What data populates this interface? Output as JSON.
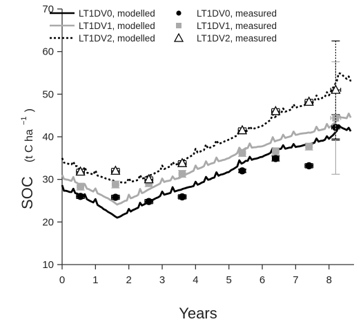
{
  "chart_data": {
    "type": "line",
    "xlabel": "Years",
    "ylabel": "SOC",
    "ylabel_unit_open": "(t C ha",
    "ylabel_unit_sup": "−1",
    "ylabel_unit_close": ")",
    "xlim": [
      0,
      8.75
    ],
    "ylim": [
      10,
      70
    ],
    "xticks": [
      0,
      1,
      2,
      3,
      4,
      5,
      6,
      7,
      8
    ],
    "yticks": [
      10,
      20,
      30,
      40,
      50,
      60,
      70
    ],
    "legend_position": "top-left",
    "series": [
      {
        "name": "LT1DV0, modelled",
        "kind": "modelled",
        "color": "#000000",
        "dash": "solid",
        "anchors": [
          [
            0,
            27.7
          ],
          [
            0.45,
            26.9
          ],
          [
            0.55,
            26.3
          ],
          [
            1.0,
            24.5
          ],
          [
            1.5,
            22.0
          ],
          [
            1.65,
            21.2
          ],
          [
            2.0,
            22.5
          ],
          [
            2.45,
            24.3
          ],
          [
            3.0,
            26.5
          ],
          [
            3.5,
            27.7
          ],
          [
            4.0,
            28.8
          ],
          [
            4.5,
            30.5
          ],
          [
            5.0,
            32.0
          ],
          [
            5.5,
            34.5
          ],
          [
            6.0,
            35.5
          ],
          [
            6.5,
            37.3
          ],
          [
            7.0,
            37.8
          ],
          [
            7.5,
            38.7
          ],
          [
            8.0,
            39.7
          ],
          [
            8.35,
            42.5
          ],
          [
            8.65,
            41.3
          ]
        ]
      },
      {
        "name": "LT1DV1, modelled",
        "kind": "modelled",
        "color": "#aaaaaa",
        "dash": "solid",
        "anchors": [
          [
            0,
            30.5
          ],
          [
            0.45,
            29.4
          ],
          [
            0.55,
            28.7
          ],
          [
            1.0,
            27.2
          ],
          [
            1.5,
            25.2
          ],
          [
            1.65,
            24.3
          ],
          [
            2.0,
            25.5
          ],
          [
            2.45,
            27.2
          ],
          [
            3.0,
            29.5
          ],
          [
            3.5,
            30.5
          ],
          [
            4.0,
            32.5
          ],
          [
            4.5,
            34.0
          ],
          [
            5.0,
            35.2
          ],
          [
            5.5,
            37.5
          ],
          [
            6.0,
            38.0
          ],
          [
            6.5,
            39.5
          ],
          [
            7.0,
            40.7
          ],
          [
            7.5,
            41.3
          ],
          [
            8.0,
            42.3
          ],
          [
            8.35,
            44.8
          ],
          [
            8.65,
            44.5
          ]
        ]
      },
      {
        "name": "LT1DV2, modelled",
        "kind": "modelled",
        "color": "#000000",
        "dash": "dotted",
        "anchors": [
          [
            0,
            34.3
          ],
          [
            0.45,
            33.3
          ],
          [
            0.55,
            32.2
          ],
          [
            1.0,
            31.2
          ],
          [
            1.5,
            30.0
          ],
          [
            1.65,
            29.5
          ],
          [
            2.0,
            29.5
          ],
          [
            2.45,
            30.5
          ],
          [
            3.0,
            32.5
          ],
          [
            3.5,
            34.0
          ],
          [
            4.0,
            36.3
          ],
          [
            4.5,
            37.9
          ],
          [
            5.0,
            39.5
          ],
          [
            5.5,
            41.5
          ],
          [
            6.0,
            42.8
          ],
          [
            6.5,
            45.5
          ],
          [
            7.0,
            47.0
          ],
          [
            7.5,
            48.3
          ],
          [
            8.0,
            50.0
          ],
          [
            8.35,
            55.0
          ],
          [
            8.65,
            53.0
          ]
        ]
      },
      {
        "name": "LT1DV0, measured",
        "kind": "measured",
        "marker": "circle",
        "color": "#000000",
        "points": [
          {
            "x": 0.55,
            "y": 26.0,
            "xerr": 0.12,
            "yerr": 0.5
          },
          {
            "x": 1.6,
            "y": 25.8,
            "xerr": 0.12,
            "yerr": 0.5
          },
          {
            "x": 2.6,
            "y": 24.8,
            "xerr": 0.12,
            "yerr": 0.5
          },
          {
            "x": 3.6,
            "y": 25.9,
            "xerr": 0.12,
            "yerr": 0.5
          },
          {
            "x": 5.4,
            "y": 32.0,
            "xerr": 0.1,
            "yerr": 0.4
          },
          {
            "x": 6.4,
            "y": 34.9,
            "xerr": 0.1,
            "yerr": 0.6
          },
          {
            "x": 7.4,
            "y": 33.2,
            "xerr": 0.12,
            "yerr": 0.5
          },
          {
            "x": 8.2,
            "y": 42.2,
            "xerr": 0.12,
            "yerr": 3.0
          }
        ]
      },
      {
        "name": "LT1DV1, measured",
        "kind": "measured",
        "marker": "square",
        "color": "#aaaaaa",
        "points": [
          {
            "x": 0.55,
            "y": 28.3,
            "xerr": 0.1,
            "yerr": 0.8
          },
          {
            "x": 1.6,
            "y": 28.8,
            "xerr": 0.1,
            "yerr": 0.8
          },
          {
            "x": 2.6,
            "y": 29.1,
            "xerr": 0.1,
            "yerr": 0.8
          },
          {
            "x": 3.6,
            "y": 31.3,
            "xerr": 0.1,
            "yerr": 0.8
          },
          {
            "x": 5.4,
            "y": 36.2,
            "xerr": 0.1,
            "yerr": 0.8
          },
          {
            "x": 6.4,
            "y": 36.6,
            "xerr": 0.1,
            "yerr": 0.8
          },
          {
            "x": 7.4,
            "y": 37.7,
            "xerr": 0.1,
            "yerr": 0.8
          },
          {
            "x": 8.2,
            "y": 44.4,
            "xerr": 0.15,
            "yerr": 13.2
          }
        ]
      },
      {
        "name": "LT1DV2, measured",
        "kind": "measured",
        "marker": "triangle",
        "color": "#000000",
        "points": [
          {
            "x": 0.55,
            "y": 31.8,
            "xerr": 0.12,
            "yerr": 0.6
          },
          {
            "x": 1.6,
            "y": 32.0,
            "xerr": 0.12,
            "yerr": 0.6
          },
          {
            "x": 2.6,
            "y": 30.0,
            "xerr": 0.12,
            "yerr": 0.6
          },
          {
            "x": 3.6,
            "y": 33.8,
            "xerr": 0.12,
            "yerr": 0.6
          },
          {
            "x": 5.4,
            "y": 41.5,
            "xerr": 0.12,
            "yerr": 0.6
          },
          {
            "x": 6.4,
            "y": 46.0,
            "xerr": 0.12,
            "yerr": 0.6
          },
          {
            "x": 7.4,
            "y": 48.2,
            "xerr": 0.12,
            "yerr": 0.6
          },
          {
            "x": 8.2,
            "y": 51.0,
            "xerr": 0.15,
            "yerr": 11.5
          }
        ]
      }
    ]
  }
}
